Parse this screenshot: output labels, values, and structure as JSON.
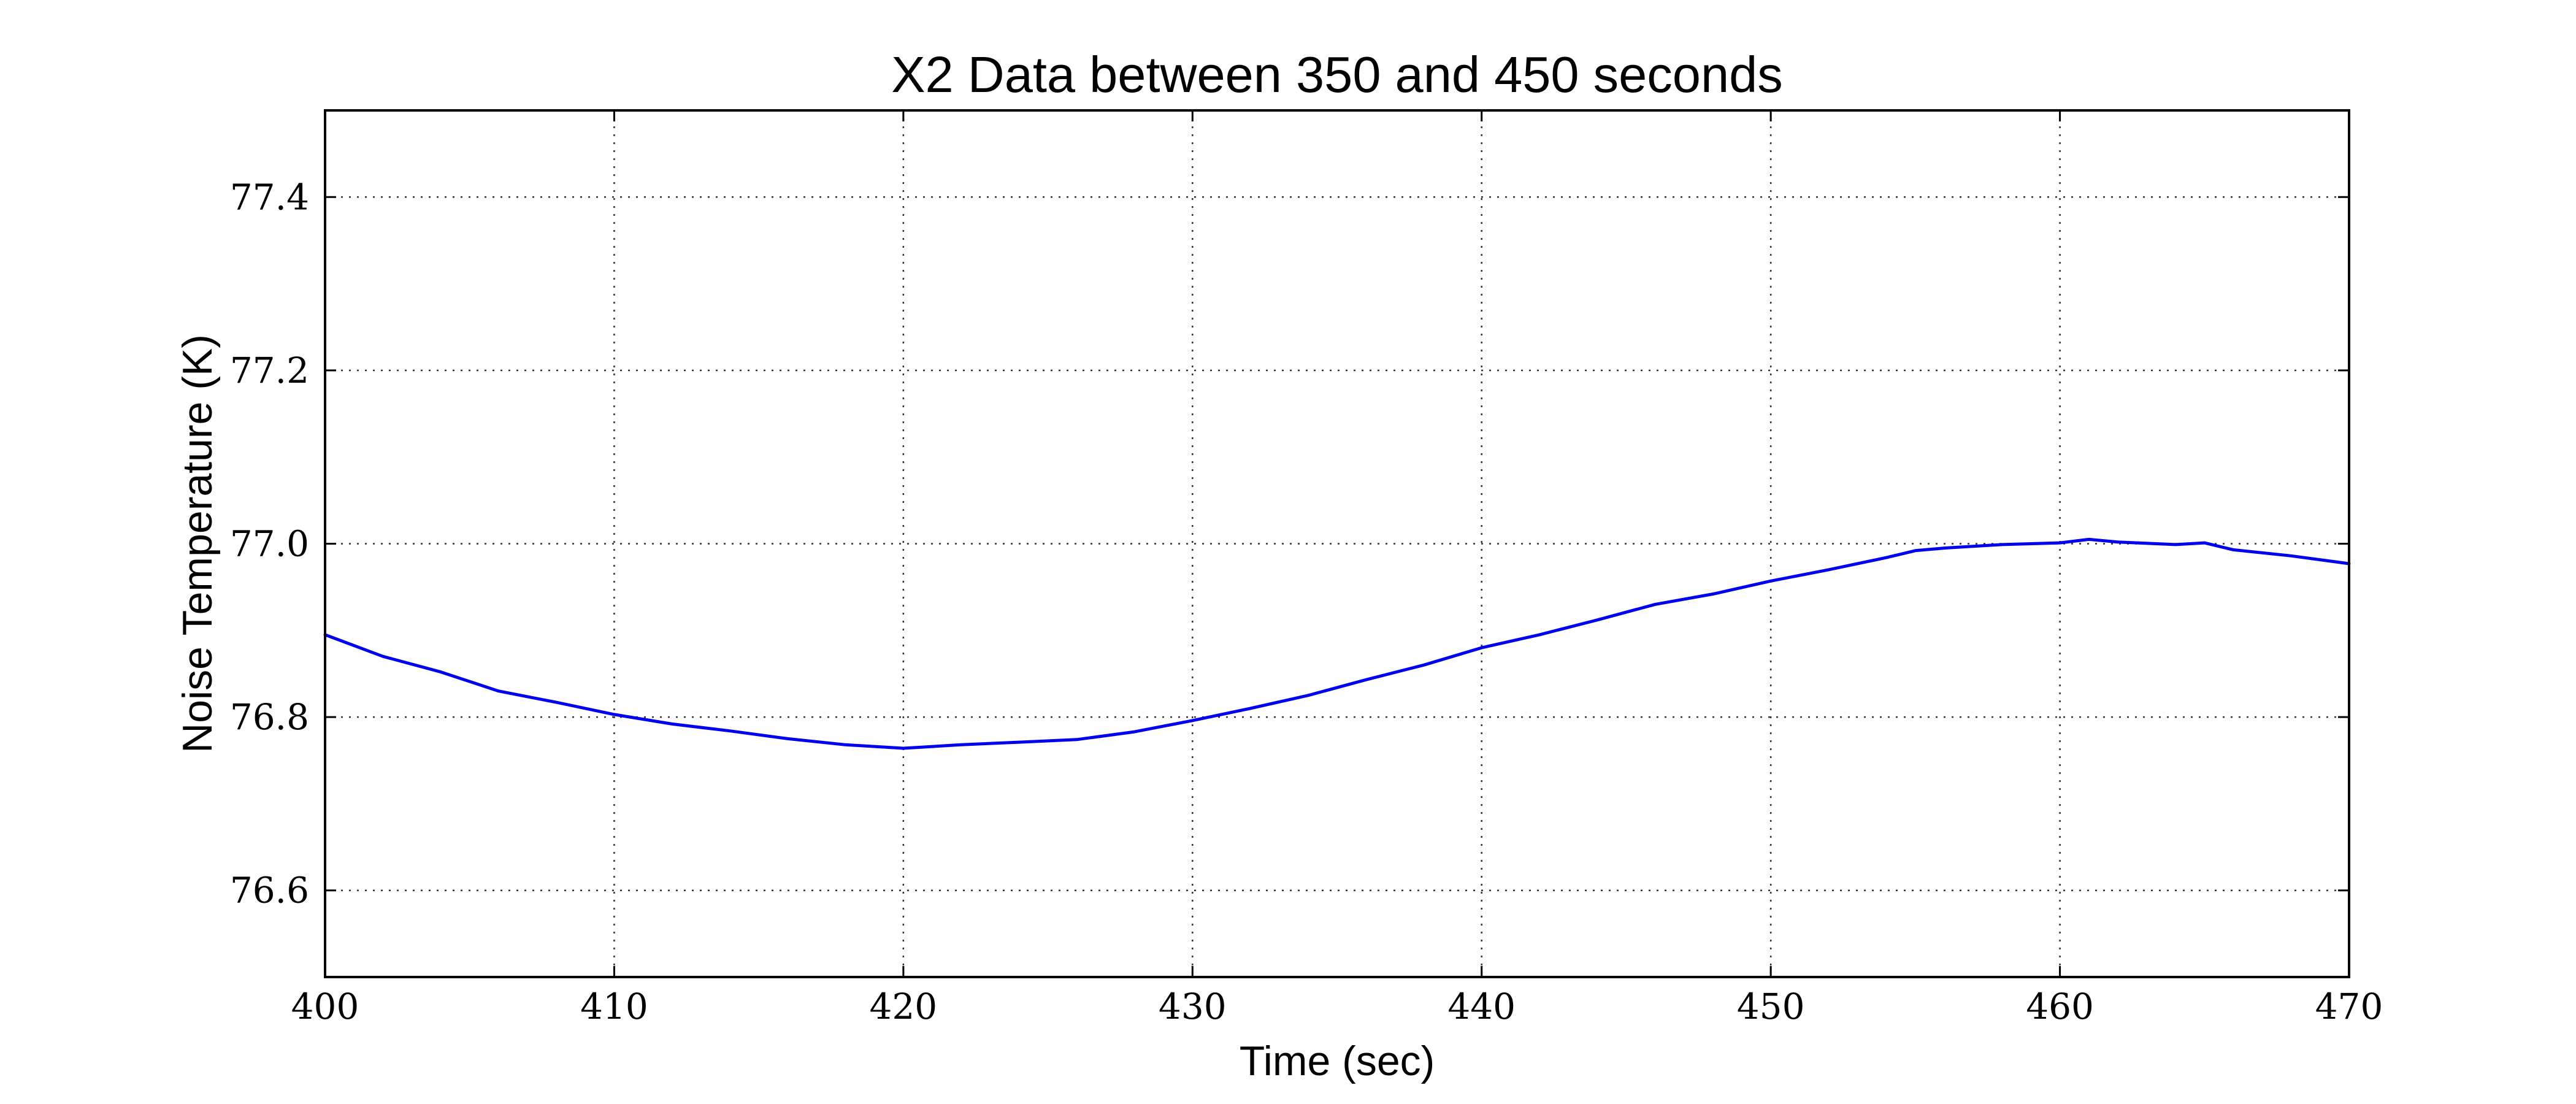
{
  "chart_data": {
    "type": "line",
    "title": "X2 Data between 350 and 450 seconds",
    "xlabel": "Time (sec)",
    "ylabel": "Noise Temperature (K)",
    "xlim": [
      400,
      470
    ],
    "ylim": [
      76.5,
      77.5
    ],
    "xticks": [
      400,
      410,
      420,
      430,
      440,
      450,
      460,
      470
    ],
    "yticks": [
      76.6,
      76.8,
      77.0,
      77.2,
      77.4
    ],
    "xtick_labels": [
      "400",
      "410",
      "420",
      "430",
      "440",
      "450",
      "460",
      "470"
    ],
    "ytick_labels": [
      "76.6",
      "76.8",
      "77.0",
      "77.2",
      "77.4"
    ],
    "grid": true,
    "line_color": "#0000ee",
    "series": [
      {
        "x": [
          400,
          402,
          404,
          406,
          408,
          410,
          412,
          414,
          416,
          418,
          420,
          422,
          424,
          426,
          428,
          430,
          432,
          434,
          436,
          438,
          440,
          442,
          444,
          446,
          448,
          450,
          452,
          454,
          455,
          456,
          458,
          460,
          461,
          462,
          464,
          465,
          466,
          468,
          470
        ],
        "y": [
          76.895,
          76.87,
          76.852,
          76.83,
          76.817,
          76.803,
          76.792,
          76.784,
          76.775,
          76.768,
          76.764,
          76.768,
          76.771,
          76.774,
          76.783,
          76.796,
          76.81,
          76.825,
          76.843,
          76.86,
          76.88,
          76.895,
          76.912,
          76.93,
          76.942,
          76.957,
          76.97,
          76.984,
          76.992,
          76.995,
          76.999,
          77.001,
          77.005,
          77.002,
          76.999,
          77.001,
          76.993,
          76.986,
          76.977
        ]
      }
    ]
  }
}
